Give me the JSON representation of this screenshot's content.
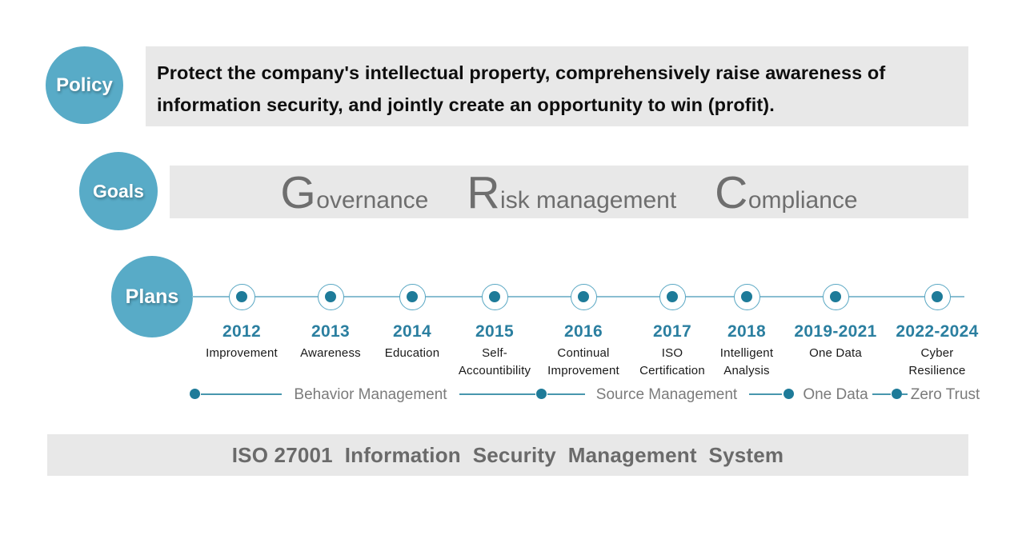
{
  "policy": {
    "label": "Policy",
    "line1": "Protect the company's intellectual property, comprehensively raise awareness of",
    "line2": "information security, and jointly create an opportunity to win (profit)."
  },
  "goals": {
    "label": "Goals",
    "items": [
      {
        "initial": "G",
        "rest": "overnance"
      },
      {
        "initial": "R",
        "rest": "isk management"
      },
      {
        "initial": "C",
        "rest": "ompliance"
      }
    ]
  },
  "plans": {
    "label": "Plans",
    "milestones": [
      {
        "year": "2012",
        "lines": [
          "Improvement"
        ]
      },
      {
        "year": "2013",
        "lines": [
          "Awareness"
        ]
      },
      {
        "year": "2014",
        "lines": [
          "Education"
        ]
      },
      {
        "year": "2015",
        "lines": [
          "Self-",
          "Accountibility"
        ]
      },
      {
        "year": "2016",
        "lines": [
          "Continual",
          "Improvement"
        ]
      },
      {
        "year": "2017",
        "lines": [
          "ISO",
          "Certification"
        ]
      },
      {
        "year": "2018",
        "lines": [
          "Intelligent",
          "Analysis"
        ]
      },
      {
        "year": "2019-2021",
        "lines": [
          "One Data"
        ]
      },
      {
        "year": "2022-2024",
        "lines": [
          "Cyber",
          "Resilience"
        ]
      }
    ],
    "phases": [
      {
        "label": "Behavior Management"
      },
      {
        "label": "Source Management"
      },
      {
        "label": "One Data"
      },
      {
        "label": "Zero Trust"
      }
    ]
  },
  "footer": {
    "text": "ISO 27001  Information  Security  Management  System"
  },
  "colors": {
    "badge_teal": "#58abc7",
    "dot_teal": "#1e7b99",
    "year_teal": "#2b7fa0",
    "line_light_teal": "#8abed1",
    "bar_gray": "#e8e8e8",
    "goal_text_gray": "#6e6e6e",
    "phase_text_gray": "#7b7b7b",
    "footer_text_gray": "#6a6a6a"
  }
}
